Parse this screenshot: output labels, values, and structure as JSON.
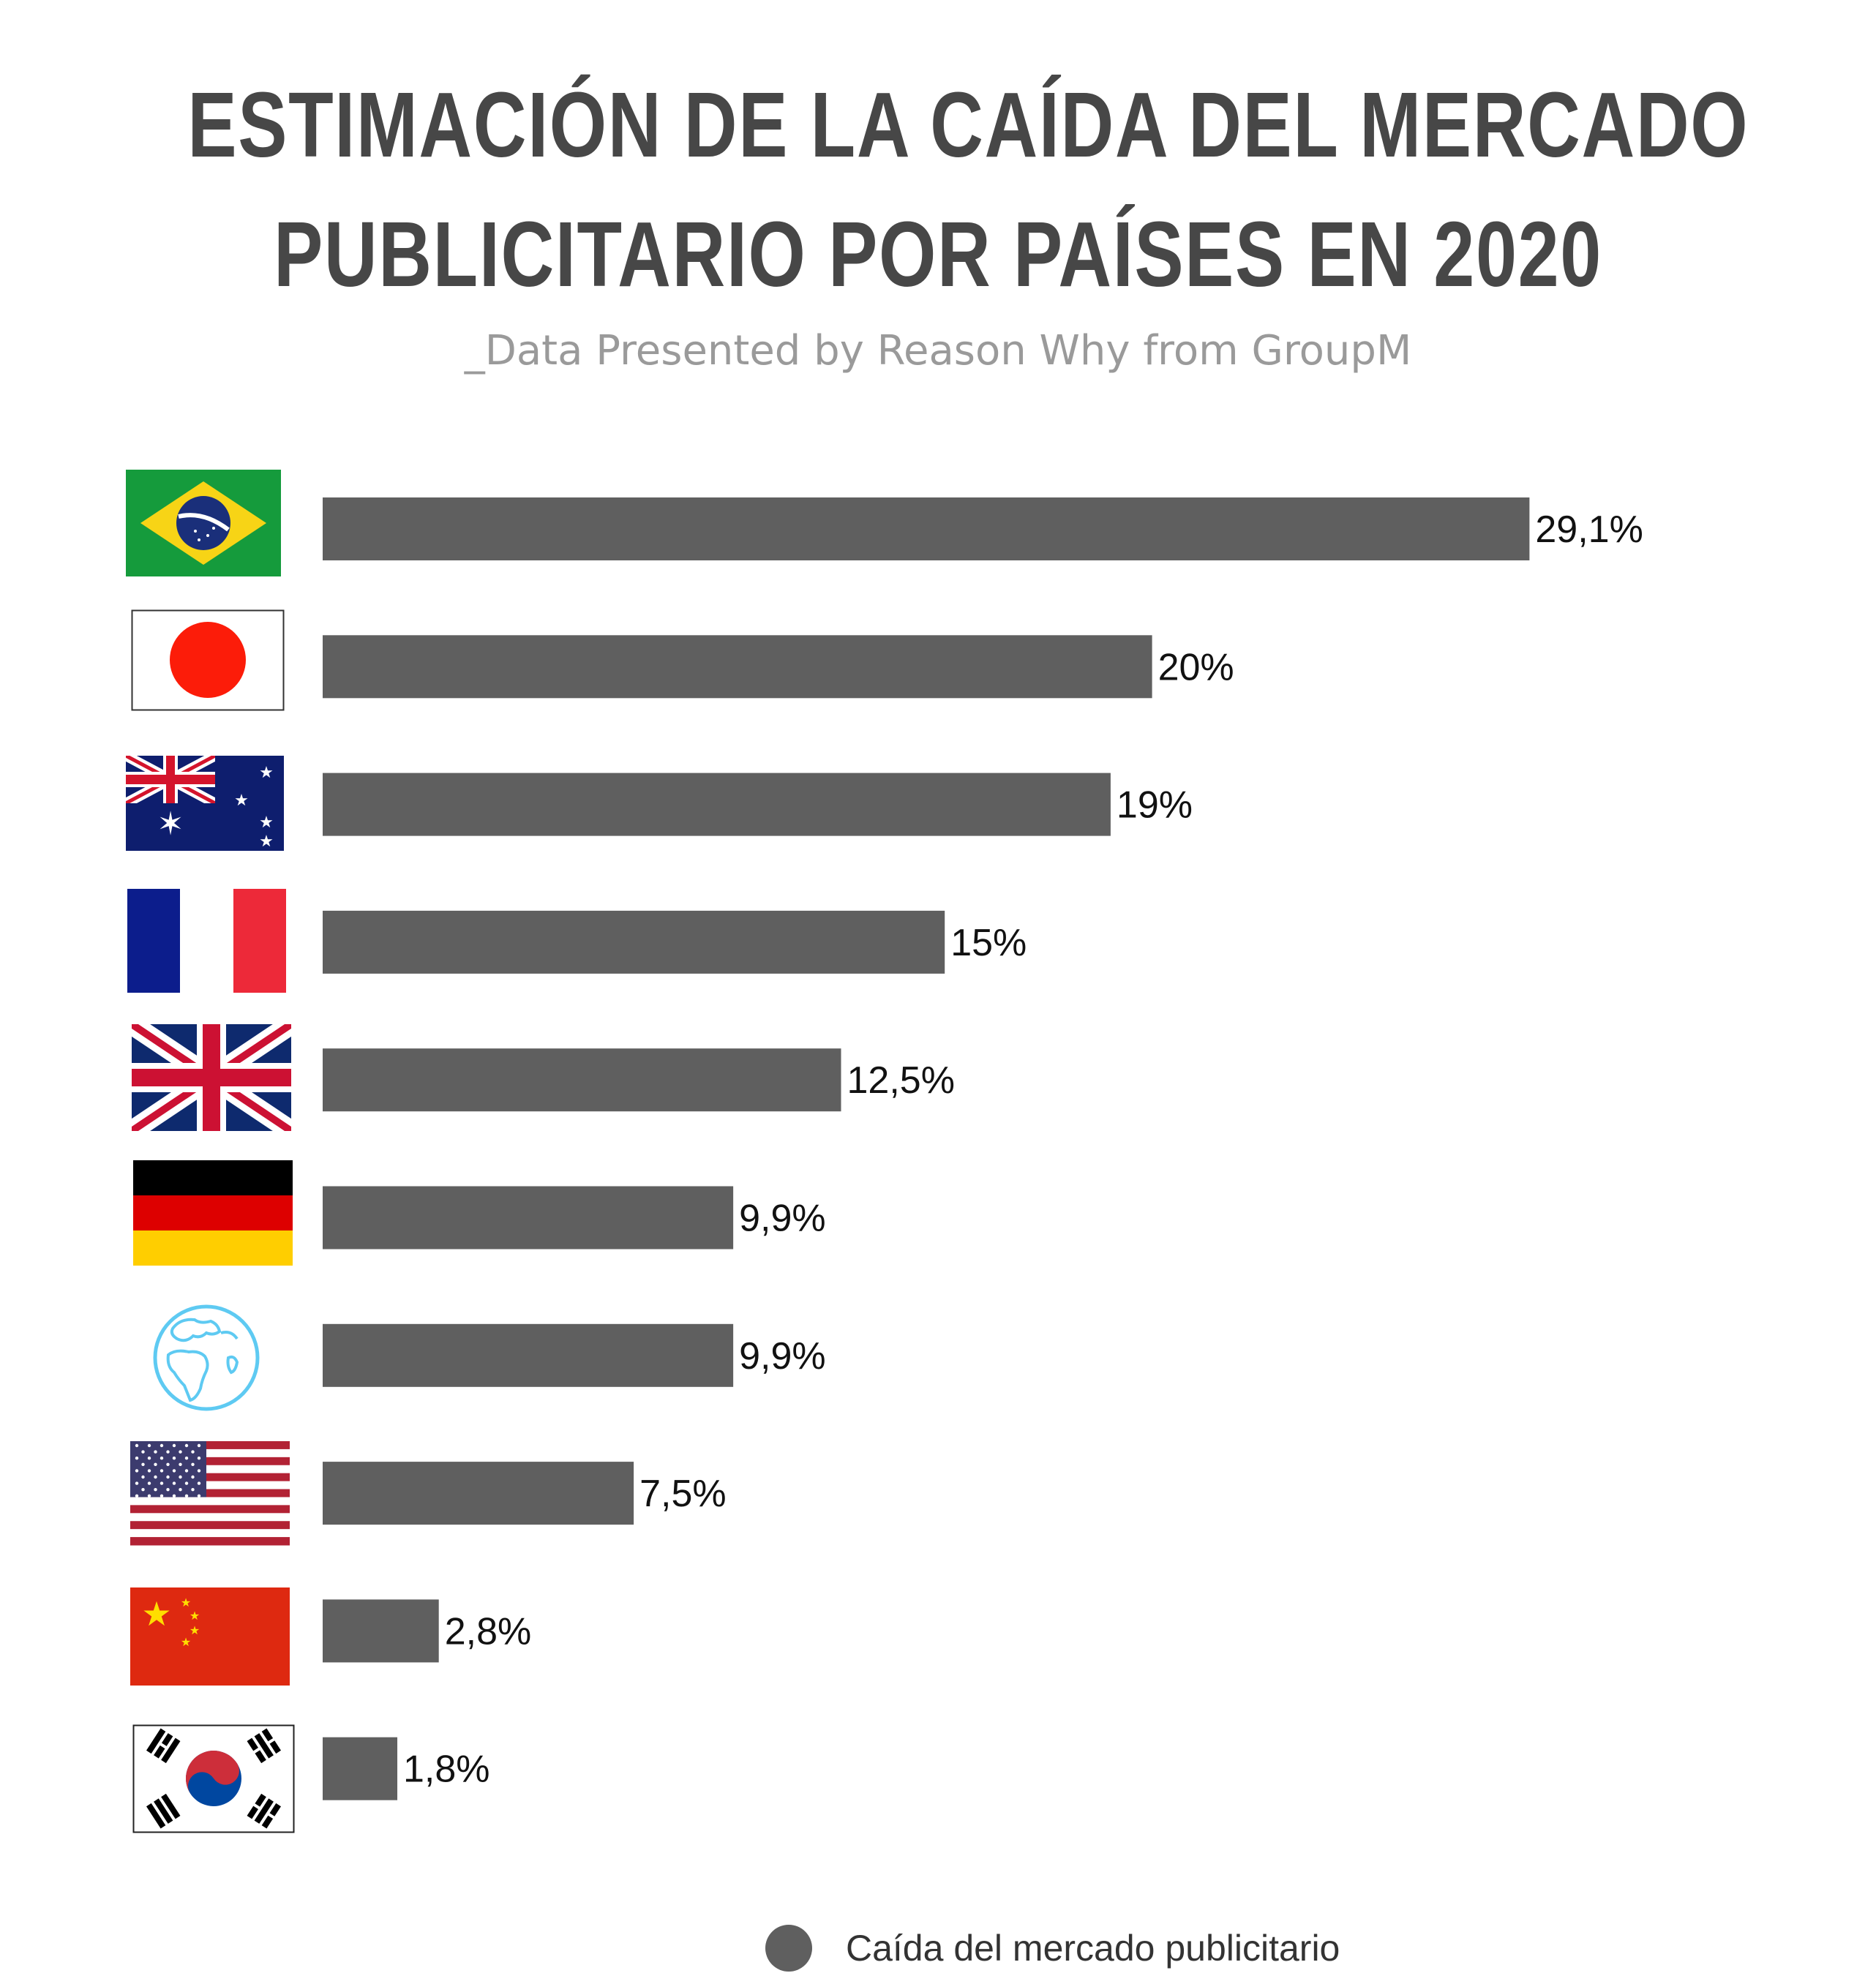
{
  "header": {
    "title_line1": "ESTIMACIÓN DE LA CAÍDA DEL MERCADO",
    "title_line2": "PUBLICITARIO POR PAÍSES EN 2020",
    "subtitle": "_Data Presented by Reason Why from GroupM"
  },
  "legend": {
    "label": "Caída del mercado publicitario",
    "color": "#5f5f5f"
  },
  "chart_data": {
    "type": "bar",
    "orientation": "horizontal",
    "title": "ESTIMACIÓN DE LA CAÍDA DEL MERCADO PUBLICITARIO POR PAÍSES EN 2020",
    "subtitle": "_Data Presented by Reason Why from GroupM",
    "categories": [
      "brazil-flag",
      "japan-flag",
      "australia-flag",
      "france-flag",
      "uk-flag",
      "germany-flag",
      "globe-icon",
      "usa-flag",
      "china-flag",
      "south-korea-flag"
    ],
    "series": [
      {
        "name": "Caída del mercado publicitario",
        "values": [
          29.1,
          20,
          19,
          15,
          12.5,
          9.9,
          9.9,
          7.5,
          2.8,
          1.8
        ],
        "labels": [
          "29,1%",
          "20%",
          "19%",
          "15%",
          "12,5%",
          "9,9%",
          "9,9%",
          "7,5%",
          "2,8%",
          "1,8%"
        ]
      }
    ],
    "bar_color": "#5f5f5f",
    "grid": false,
    "legend_position": "bottom"
  }
}
